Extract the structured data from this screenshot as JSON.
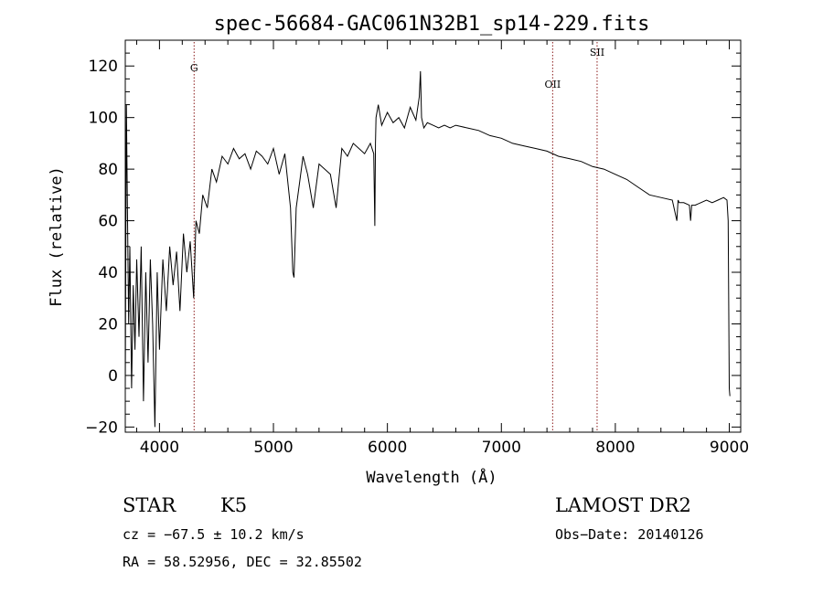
{
  "chart_data": {
    "type": "line",
    "title": "spec-56684-GAC061N32B1_sp14-229.fits",
    "xlabel": "Wavelength (Å)",
    "ylabel": "Flux (relative)",
    "xlim": [
      3700,
      9100
    ],
    "ylim": [
      -22,
      130
    ],
    "x_ticks": [
      4000,
      5000,
      6000,
      7000,
      8000,
      9000
    ],
    "y_ticks": [
      -20,
      0,
      20,
      40,
      60,
      80,
      100,
      120
    ],
    "x_tick_labels": [
      "4000",
      "5000",
      "6000",
      "7000",
      "8000",
      "9000"
    ],
    "y_tick_labels": [
      "−20",
      "0",
      "20",
      "40",
      "60",
      "80",
      "100",
      "120"
    ],
    "line_color": "#000000",
    "marker_color": "#8b1a1a",
    "line_markers": [
      {
        "label": "G",
        "x": 4304
      },
      {
        "label": "OII",
        "x": 7450
      },
      {
        "label": "SII",
        "x": 7840
      }
    ],
    "series": [
      {
        "x": [
          3700,
          3710,
          3720,
          3730,
          3740,
          3755,
          3770,
          3785,
          3800,
          3820,
          3840,
          3860,
          3880,
          3900,
          3920,
          3940,
          3960,
          3980,
          4000,
          4030,
          4060,
          4090,
          4120,
          4150,
          4180,
          4210,
          4240,
          4270,
          4300,
          4320,
          4350,
          4380,
          4420,
          4460,
          4500,
          4550,
          4600,
          4650,
          4700,
          4750,
          4800,
          4850,
          4900,
          4950,
          5000,
          5050,
          5100,
          5150,
          5170,
          5180,
          5200,
          5230,
          5260,
          5300,
          5350,
          5400,
          5450,
          5500,
          5550,
          5600,
          5650,
          5700,
          5750,
          5800,
          5850,
          5880,
          5890,
          5895,
          5900,
          5920,
          5950,
          6000,
          6050,
          6100,
          6150,
          6200,
          6250,
          6280,
          6290,
          6300,
          6320,
          6350,
          6400,
          6450,
          6500,
          6550,
          6600,
          6700,
          6800,
          6900,
          7000,
          7100,
          7200,
          7300,
          7400,
          7500,
          7600,
          7700,
          7800,
          7900,
          8000,
          8100,
          8200,
          8300,
          8400,
          8500,
          8540,
          8550,
          8560,
          8600,
          8650,
          8660,
          8670,
          8700,
          8750,
          8800,
          8850,
          8900,
          8950,
          8980,
          8990,
          9000,
          9005
        ],
        "y": [
          -5,
          105,
          60,
          20,
          50,
          -5,
          35,
          10,
          45,
          15,
          50,
          -10,
          40,
          5,
          45,
          20,
          -20,
          40,
          10,
          45,
          25,
          50,
          35,
          48,
          25,
          55,
          40,
          52,
          30,
          60,
          55,
          70,
          65,
          80,
          75,
          85,
          82,
          88,
          84,
          86,
          80,
          87,
          85,
          82,
          88,
          78,
          86,
          65,
          40,
          38,
          65,
          75,
          85,
          78,
          65,
          82,
          80,
          78,
          65,
          88,
          85,
          90,
          88,
          86,
          90,
          86,
          58,
          90,
          100,
          105,
          97,
          102,
          98,
          100,
          96,
          104,
          99,
          108,
          118,
          100,
          96,
          98,
          97,
          96,
          97,
          96,
          97,
          96,
          95,
          93,
          92,
          90,
          89,
          88,
          87,
          85,
          84,
          83,
          81,
          80,
          78,
          76,
          73,
          70,
          69,
          68,
          60,
          68,
          67,
          67,
          66,
          60,
          66,
          66,
          67,
          68,
          67,
          68,
          69,
          68,
          60,
          -5,
          -8
        ]
      }
    ]
  },
  "info": {
    "class": "STAR",
    "subclass": "K5",
    "survey": "LAMOST DR2",
    "cz": "cz = −67.5 ± 10.2 km/s",
    "obs_date": "Obs−Date: 20140126",
    "coords": "RA =  58.52956, DEC =  32.85502"
  }
}
